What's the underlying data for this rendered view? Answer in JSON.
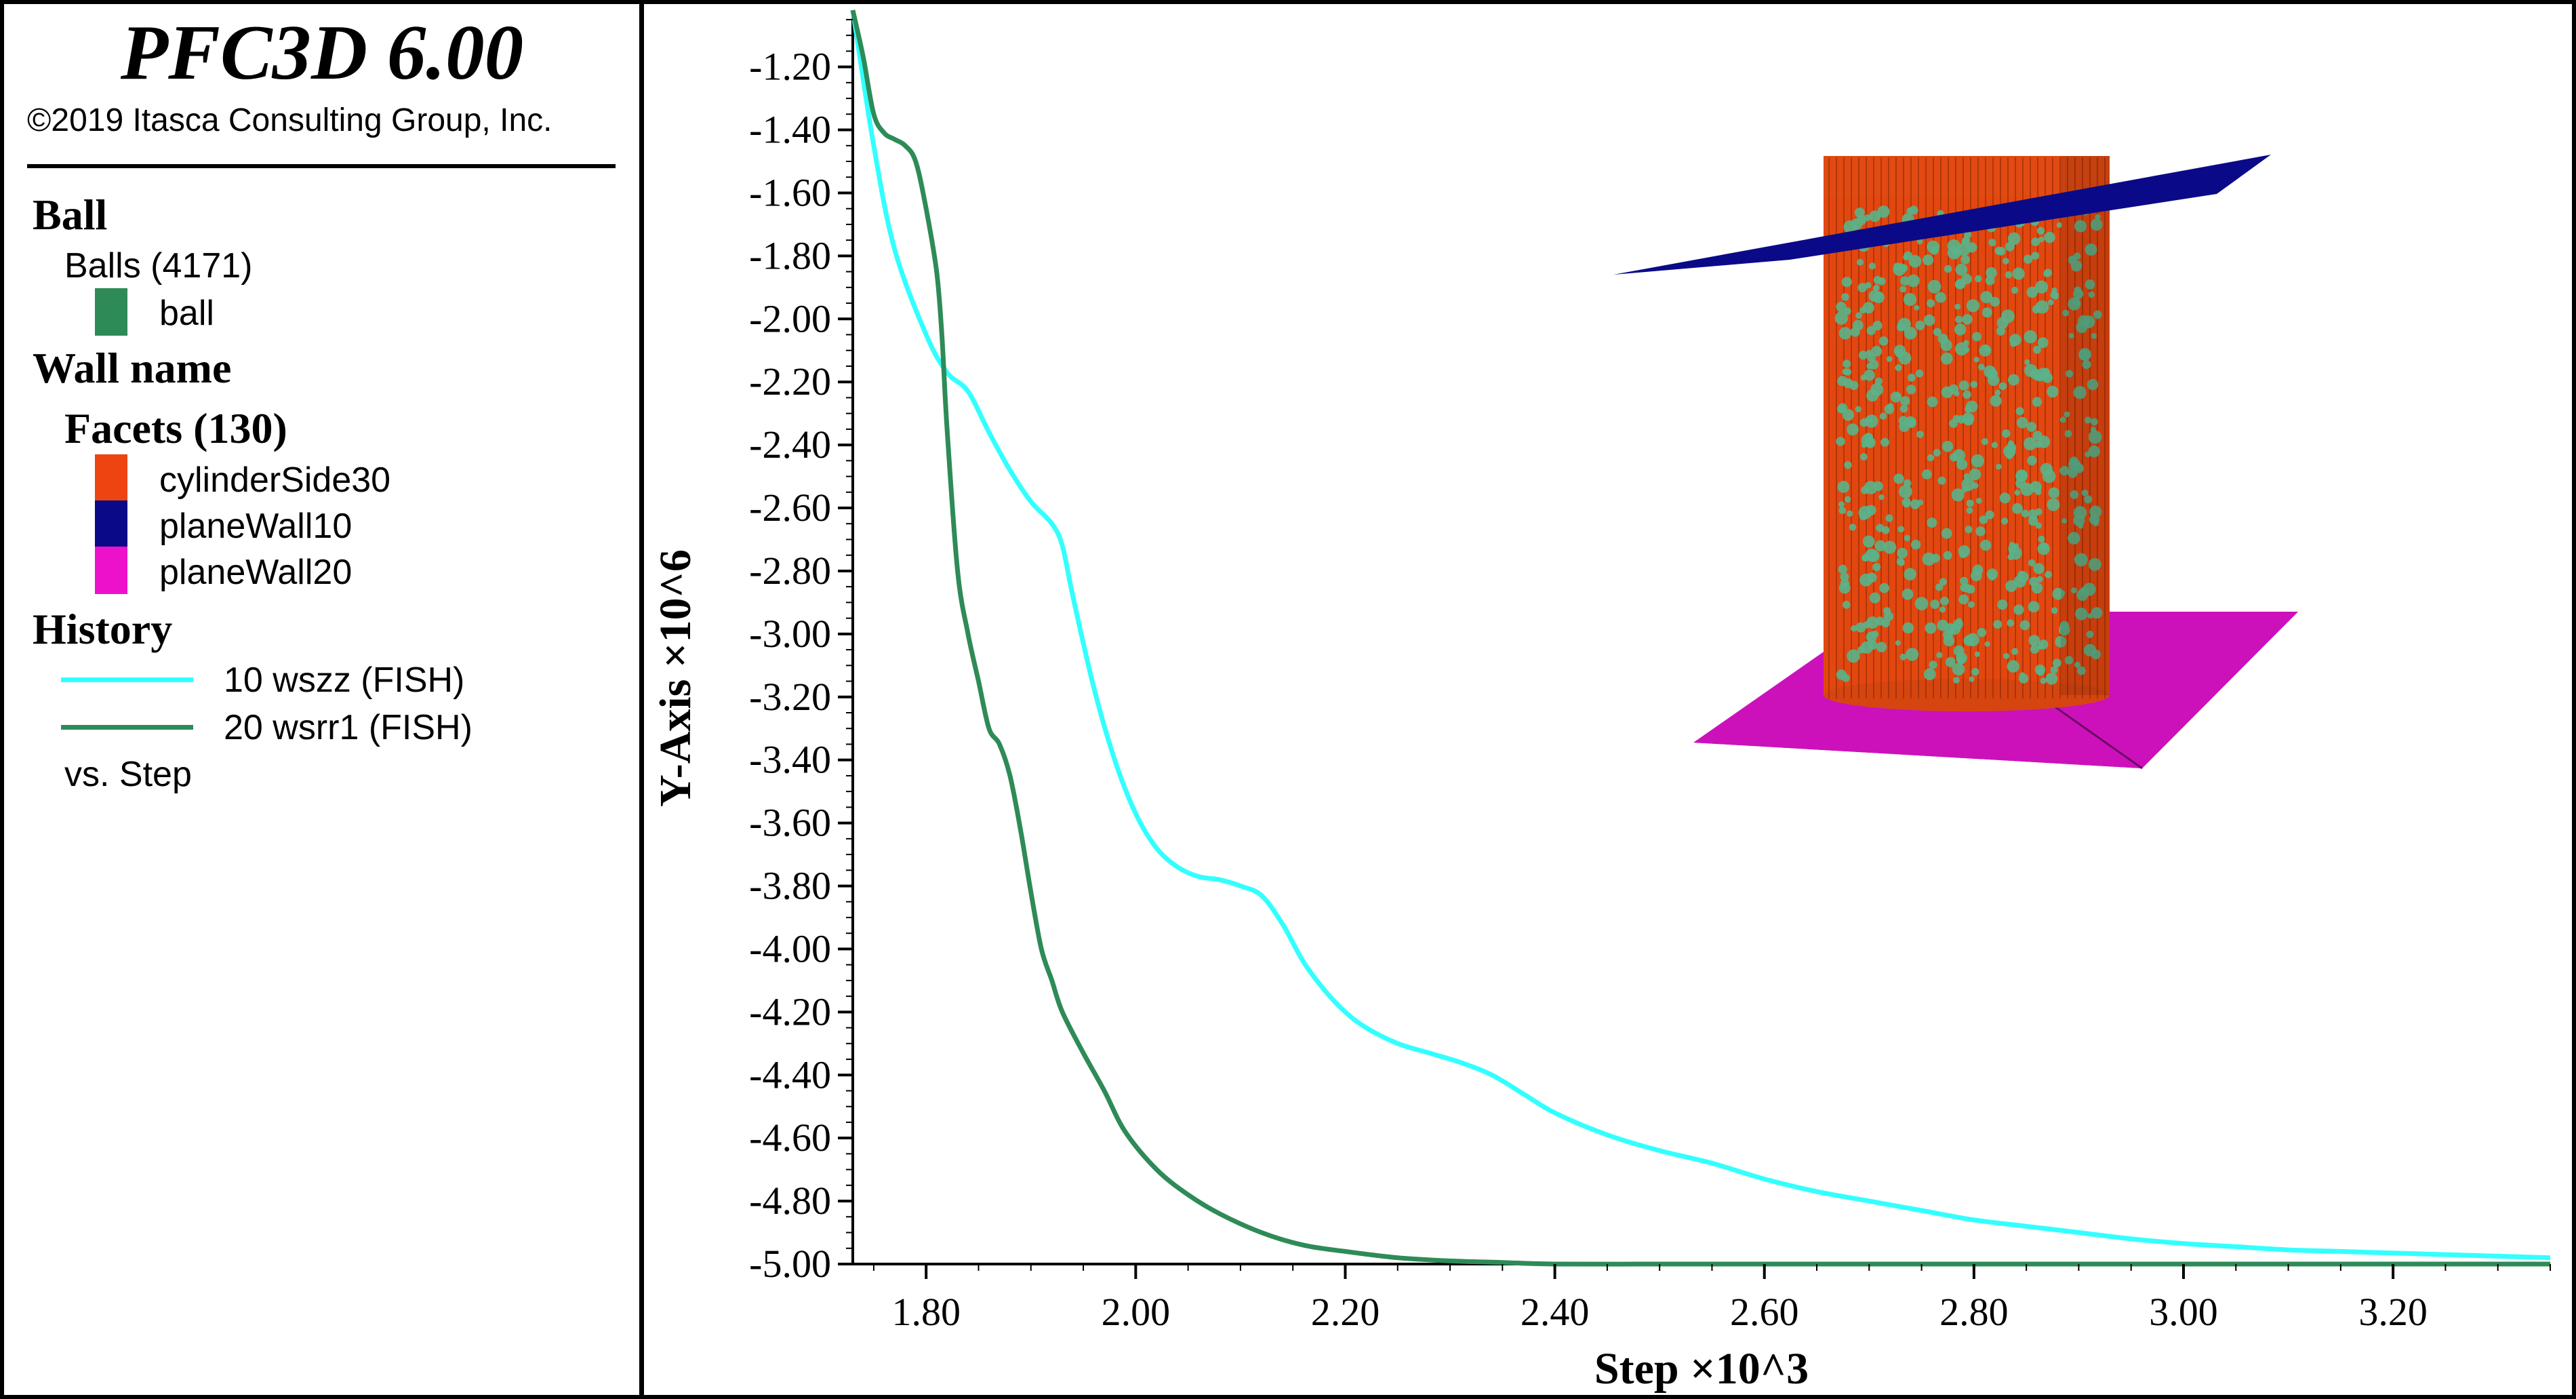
{
  "legend": {
    "title": "PFC3D 6.00",
    "copyright": "©2019 Itasca Consulting Group, Inc.",
    "ball_header": "Ball",
    "balls_label": "Balls (4171)",
    "ball_item": {
      "label": "ball",
      "color": "#2e8b57"
    },
    "wall_header": "Wall name",
    "facets_label": "Facets (130)",
    "wall_items": [
      {
        "label": "cylinderSide30",
        "color": "#ee4411"
      },
      {
        "label": "planeWall10",
        "color": "#0a0a88"
      },
      {
        "label": "planeWall20",
        "color": "#ee11cc"
      }
    ],
    "history_header": "History",
    "history_items": [
      {
        "label": "10 wszz (FISH)",
        "color": "#33ffff"
      },
      {
        "label": "20 wsrr1 (FISH)",
        "color": "#2e8b57"
      }
    ],
    "vs_label": "vs. Step"
  },
  "chart_data": {
    "type": "line",
    "xlabel": "Step ×10^3",
    "ylabel": "Y-Axis ×10^6",
    "xlim": [
      1.73,
      3.35
    ],
    "ylim": [
      -5.0,
      -1.02
    ],
    "x_ticks": [
      "1.80",
      "2.00",
      "2.20",
      "2.40",
      "2.60",
      "2.80",
      "3.00",
      "3.20"
    ],
    "x_tick_values": [
      1.8,
      2.0,
      2.2,
      2.4,
      2.6,
      2.8,
      3.0,
      3.2
    ],
    "y_ticks": [
      "-1.20",
      "-1.40",
      "-1.60",
      "-1.80",
      "-2.00",
      "-2.20",
      "-2.40",
      "-2.60",
      "-2.80",
      "-3.00",
      "-3.20",
      "-3.40",
      "-3.60",
      "-3.80",
      "-4.00",
      "-4.20",
      "-4.40",
      "-4.60",
      "-4.80",
      "-5.00"
    ],
    "y_tick_values": [
      -1.2,
      -1.4,
      -1.6,
      -1.8,
      -2.0,
      -2.2,
      -2.4,
      -2.6,
      -2.8,
      -3.0,
      -3.2,
      -3.4,
      -3.6,
      -3.8,
      -4.0,
      -4.2,
      -4.4,
      -4.6,
      -4.8,
      -5.0
    ],
    "series": [
      {
        "name": "10 wszz (FISH)",
        "color": "#33ffff",
        "x": [
          1.73,
          1.75,
          1.77,
          1.8,
          1.82,
          1.84,
          1.86,
          1.88,
          1.9,
          1.92,
          1.93,
          1.94,
          1.96,
          1.98,
          2.0,
          2.02,
          2.04,
          2.06,
          2.08,
          2.1,
          2.12,
          2.14,
          2.16,
          2.18,
          2.2,
          2.22,
          2.25,
          2.28,
          2.31,
          2.34,
          2.37,
          2.4,
          2.45,
          2.5,
          2.55,
          2.6,
          2.65,
          2.7,
          2.75,
          2.8,
          2.85,
          2.9,
          2.95,
          3.0,
          3.05,
          3.1,
          3.15,
          3.2,
          3.25,
          3.3,
          3.35
        ],
        "values": [
          -1.02,
          -1.45,
          -1.78,
          -2.05,
          -2.17,
          -2.23,
          -2.36,
          -2.48,
          -2.58,
          -2.65,
          -2.72,
          -2.88,
          -3.17,
          -3.4,
          -3.57,
          -3.68,
          -3.74,
          -3.77,
          -3.78,
          -3.8,
          -3.83,
          -3.92,
          -4.04,
          -4.13,
          -4.2,
          -4.25,
          -4.3,
          -4.33,
          -4.36,
          -4.4,
          -4.46,
          -4.52,
          -4.59,
          -4.64,
          -4.68,
          -4.73,
          -4.77,
          -4.8,
          -4.83,
          -4.86,
          -4.88,
          -4.9,
          -4.92,
          -4.935,
          -4.945,
          -4.955,
          -4.96,
          -4.965,
          -4.97,
          -4.975,
          -4.98
        ]
      },
      {
        "name": "20 wsrr1 (FISH)",
        "color": "#2e8b57",
        "x": [
          1.73,
          1.74,
          1.75,
          1.76,
          1.77,
          1.78,
          1.79,
          1.8,
          1.81,
          1.815,
          1.82,
          1.83,
          1.84,
          1.85,
          1.86,
          1.87,
          1.88,
          1.89,
          1.9,
          1.91,
          1.92,
          1.93,
          1.95,
          1.97,
          1.99,
          2.02,
          2.05,
          2.08,
          2.12,
          2.16,
          2.2,
          2.25,
          2.3,
          2.35,
          2.4,
          2.5,
          2.6,
          2.7,
          2.8,
          3.0,
          3.2,
          3.35
        ],
        "values": [
          -1.02,
          -1.17,
          -1.35,
          -1.41,
          -1.43,
          -1.45,
          -1.5,
          -1.65,
          -1.85,
          -2.05,
          -2.35,
          -2.8,
          -3.0,
          -3.15,
          -3.3,
          -3.35,
          -3.45,
          -3.62,
          -3.82,
          -4.0,
          -4.1,
          -4.2,
          -4.33,
          -4.45,
          -4.58,
          -4.7,
          -4.78,
          -4.84,
          -4.9,
          -4.94,
          -4.96,
          -4.98,
          -4.99,
          -4.995,
          -5.0,
          -5.0,
          -5.0,
          -5.0,
          -5.0,
          -5.0,
          -5.0,
          -5.0
        ]
      }
    ]
  }
}
